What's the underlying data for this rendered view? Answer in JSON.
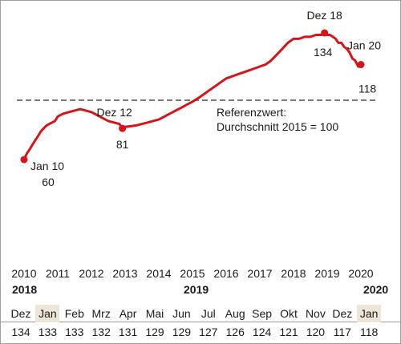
{
  "chart_data": {
    "type": "line",
    "title": "",
    "xlabel": "",
    "ylabel": "",
    "x_ticks": [
      "2010",
      "2011",
      "2012",
      "2013",
      "2014",
      "2015",
      "2016",
      "2017",
      "2018",
      "2019",
      "2020"
    ],
    "xlim": [
      2010,
      2020.2
    ],
    "ylim": [
      45,
      145
    ],
    "reference_line": {
      "value": 100,
      "style": "dashed",
      "label_line1": "Referenzwert:",
      "label_line2": "Durchschnitt 2015 = 100"
    },
    "series": [
      {
        "color": "#d7141a",
        "x": [
          2010.0,
          2010.08,
          2010.17,
          2010.25,
          2010.33,
          2010.42,
          2010.5,
          2010.58,
          2010.67,
          2010.75,
          2010.83,
          2010.92,
          2011.0,
          2011.17,
          2011.33,
          2011.5,
          2011.67,
          2011.83,
          2012.0,
          2012.17,
          2012.33,
          2012.5,
          2012.67,
          2012.83,
          2012.92,
          2013.0,
          2013.17,
          2013.33,
          2013.5,
          2013.67,
          2013.83,
          2014.0,
          2014.17,
          2014.33,
          2014.5,
          2014.67,
          2014.83,
          2015.0,
          2015.17,
          2015.33,
          2015.5,
          2015.67,
          2015.83,
          2016.0,
          2016.17,
          2016.33,
          2016.5,
          2016.67,
          2016.83,
          2017.0,
          2017.17,
          2017.33,
          2017.5,
          2017.67,
          2017.83,
          2018.0,
          2018.17,
          2018.33,
          2018.5,
          2018.67,
          2018.83,
          2018.92,
          2019.0,
          2019.08,
          2019.17,
          2019.25,
          2019.33,
          2019.42,
          2019.5,
          2019.58,
          2019.67,
          2019.75,
          2019.83,
          2019.92,
          2020.0
        ],
        "y": [
          60,
          64,
          67,
          70,
          73,
          76,
          79,
          81,
          83,
          84,
          85,
          86,
          89,
          91,
          92,
          93,
          94,
          93,
          92,
          90,
          88,
          86,
          85,
          84,
          81,
          82,
          82.5,
          83,
          84,
          85,
          86,
          87,
          89,
          91,
          93,
          95,
          97,
          99,
          101,
          103,
          105,
          107,
          109,
          111,
          112,
          113,
          114,
          115,
          116,
          117,
          118,
          120,
          123,
          126,
          129,
          131,
          131,
          132,
          132,
          133,
          133,
          134,
          133,
          133,
          132,
          131,
          129,
          129,
          127,
          126,
          124,
          121,
          120,
          117,
          118
        ]
      }
    ],
    "highlighted_points": [
      {
        "x": 2010.0,
        "y": 60,
        "label": "Jan 10",
        "value_label": "60"
      },
      {
        "x": 2012.92,
        "y": 81,
        "label": "Dez 12",
        "value_label": "81"
      },
      {
        "x": 2018.92,
        "y": 134,
        "label": "Dez 18",
        "value_label": "134"
      },
      {
        "x": 2020.0,
        "y": 118,
        "label": "Jan 20",
        "value_label": "118"
      }
    ],
    "grid": false,
    "legend": "none"
  },
  "table": {
    "year_groups": [
      "2018",
      "2019",
      "2020"
    ],
    "months": [
      {
        "label": "Dez",
        "value": "134",
        "highlight": false
      },
      {
        "label": "Jan",
        "value": "133",
        "highlight": true
      },
      {
        "label": "Feb",
        "value": "133",
        "highlight": false
      },
      {
        "label": "Mrz",
        "value": "132",
        "highlight": false
      },
      {
        "label": "Apr",
        "value": "131",
        "highlight": false
      },
      {
        "label": "Mai",
        "value": "129",
        "highlight": false
      },
      {
        "label": "Jun",
        "value": "129",
        "highlight": false
      },
      {
        "label": "Jul",
        "value": "127",
        "highlight": false
      },
      {
        "label": "Aug",
        "value": "126",
        "highlight": false
      },
      {
        "label": "Sep",
        "value": "124",
        "highlight": false
      },
      {
        "label": "Okt",
        "value": "121",
        "highlight": false
      },
      {
        "label": "Nov",
        "value": "120",
        "highlight": false
      },
      {
        "label": "Dez",
        "value": "117",
        "highlight": false
      },
      {
        "label": "Jan",
        "value": "118",
        "highlight": true
      }
    ],
    "highlight_color": "#ebe6d6"
  }
}
